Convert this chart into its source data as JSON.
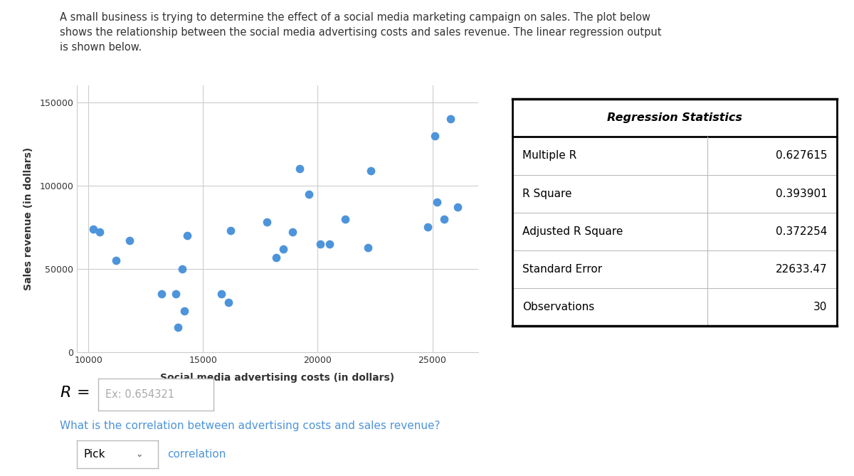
{
  "scatter_x": [
    10200,
    10500,
    11200,
    11800,
    13200,
    13800,
    13900,
    14100,
    14200,
    14300,
    15800,
    16100,
    16200,
    17800,
    18200,
    18500,
    18900,
    19200,
    19600,
    20100,
    20500,
    21200,
    22200,
    22300,
    24800,
    25100,
    25200,
    25500,
    25800,
    26100
  ],
  "scatter_y": [
    74000,
    72000,
    55000,
    67000,
    35000,
    35000,
    15000,
    50000,
    25000,
    70000,
    35000,
    30000,
    73000,
    78000,
    57000,
    62000,
    72000,
    110000,
    95000,
    65000,
    65000,
    80000,
    63000,
    109000,
    75000,
    130000,
    90000,
    80000,
    140000,
    87000
  ],
  "dot_color": "#4d94db",
  "xlabel": "Social media advertising costs (in dollars)",
  "ylabel": "Sales revenue (in dollars)",
  "xlim": [
    9500,
    27000
  ],
  "ylim": [
    0,
    160000
  ],
  "xticks": [
    10000,
    15000,
    20000,
    25000
  ],
  "yticks": [
    0,
    50000,
    100000,
    150000
  ],
  "title_text": "A small business is trying to determine the effect of a social media marketing campaign on sales. The plot below\nshows the relationship between the social media advertising costs and sales revenue. The linear regression output\nis shown below.",
  "table_header": "Regression Statistics",
  "table_rows": [
    [
      "Multiple R",
      "0.627615"
    ],
    [
      "R Square",
      "0.393901"
    ],
    [
      "Adjusted R Square",
      "0.372254"
    ],
    [
      "Standard Error",
      "22633.47"
    ],
    [
      "Observations",
      "30"
    ]
  ],
  "r_label": "R =",
  "r_placeholder": "Ex: 0.654321",
  "question_text": "What is the correlation between advertising costs and sales revenue?",
  "dropdown_text": "Pick",
  "correlation_text": "correlation",
  "background_color": "#ffffff",
  "text_color_title": "#333333",
  "text_color_question": "#4d94db",
  "text_color_placeholder": "#aaaaaa"
}
